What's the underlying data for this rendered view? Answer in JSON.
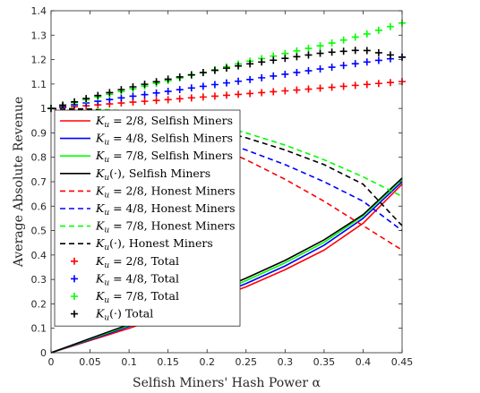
{
  "chart_data": {
    "type": "line",
    "xlabel": "Selfish Miners' Hash Power α",
    "ylabel": "Average Absolute Revenue",
    "xlim": [
      0,
      0.45
    ],
    "ylim": [
      0,
      1.4
    ],
    "xticks": [
      "0",
      "0.05",
      "0.1",
      "0.15",
      "0.2",
      "0.25",
      "0.3",
      "0.35",
      "0.4",
      "0.45"
    ],
    "yticks": [
      "0",
      "0.1",
      "0.2",
      "0.3",
      "0.4",
      "0.5",
      "0.6",
      "0.7",
      "0.8",
      "0.9",
      "1",
      "1.1",
      "1.2",
      "1.3",
      "1.4"
    ],
    "grid": false,
    "legend_position": "left",
    "x": [
      0,
      0.05,
      0.1,
      0.15,
      0.2,
      0.25,
      0.3,
      0.35,
      0.4,
      0.45
    ],
    "series": [
      {
        "name": "K_u = 2/8, Selfish Miners",
        "legend_k": "2/8",
        "legend_suffix": ", Selfish Miners",
        "color": "#ff0000",
        "style": "solid",
        "values": [
          0,
          0.05,
          0.1,
          0.155,
          0.21,
          0.27,
          0.34,
          0.42,
          0.53,
          0.69
        ]
      },
      {
        "name": "K_u = 4/8, Selfish Miners",
        "legend_k": "4/8",
        "legend_suffix": ", Selfish Miners",
        "color": "#0000ff",
        "style": "solid",
        "values": [
          0,
          0.053,
          0.107,
          0.163,
          0.22,
          0.283,
          0.355,
          0.44,
          0.55,
          0.7
        ]
      },
      {
        "name": "K_u = 7/8, Selfish Miners",
        "legend_k": "7/8",
        "legend_suffix": ", Selfish Miners",
        "color": "#00ff00",
        "style": "solid",
        "values": [
          0,
          0.056,
          0.112,
          0.17,
          0.23,
          0.295,
          0.368,
          0.452,
          0.56,
          0.71
        ]
      },
      {
        "name": "K_u(·), Selfish Miners",
        "legend_k": "(·)",
        "legend_suffix": ", Selfish Miners",
        "color": "#000000",
        "style": "solid",
        "values": [
          0,
          0.058,
          0.116,
          0.176,
          0.238,
          0.305,
          0.378,
          0.462,
          0.565,
          0.715
        ]
      },
      {
        "name": "K_u = 2/8, Honest Miners",
        "legend_k": "2/8",
        "legend_suffix": ", Honest Miners",
        "color": "#ff0000",
        "style": "dashed",
        "values": [
          1.0,
          0.99,
          0.97,
          0.925,
          0.86,
          0.79,
          0.71,
          0.62,
          0.52,
          0.42
        ]
      },
      {
        "name": "K_u = 4/8, Honest Miners",
        "legend_k": "4/8",
        "legend_suffix": ", Honest Miners",
        "color": "#0000ff",
        "style": "dashed",
        "values": [
          1.0,
          0.995,
          0.975,
          0.935,
          0.885,
          0.83,
          0.77,
          0.7,
          0.62,
          0.5
        ]
      },
      {
        "name": "K_u = 7/8, Honest Miners",
        "legend_k": "7/8",
        "legend_suffix": ", Honest Miners",
        "color": "#00ff00",
        "style": "dashed",
        "values": [
          1.0,
          0.998,
          0.99,
          0.97,
          0.94,
          0.9,
          0.85,
          0.79,
          0.72,
          0.64
        ]
      },
      {
        "name": "K_u(·), Honest Miners",
        "legend_k": "(·)",
        "legend_suffix": ", Honest Miners",
        "color": "#000000",
        "style": "dashed",
        "values": [
          1.0,
          0.997,
          0.98,
          0.96,
          0.92,
          0.88,
          0.83,
          0.77,
          0.69,
          0.52
        ]
      },
      {
        "name": "K_u = 2/8, Total",
        "legend_k": "2/8",
        "legend_suffix": ", Total",
        "color": "#ff0000",
        "style": "plus",
        "values": [
          1.0,
          1.012,
          1.025,
          1.036,
          1.048,
          1.06,
          1.072,
          1.084,
          1.097,
          1.11
        ]
      },
      {
        "name": "K_u = 4/8, Total",
        "legend_k": "4/8",
        "legend_suffix": ", Total",
        "color": "#0000ff",
        "style": "plus",
        "values": [
          1.0,
          1.025,
          1.048,
          1.07,
          1.093,
          1.116,
          1.14,
          1.164,
          1.188,
          1.21
        ]
      },
      {
        "name": "K_u = 7/8, Total",
        "legend_k": "7/8",
        "legend_suffix": ", Total",
        "color": "#00ff00",
        "style": "plus",
        "values": [
          1.0,
          1.04,
          1.077,
          1.114,
          1.15,
          1.19,
          1.225,
          1.26,
          1.3,
          1.35
        ]
      },
      {
        "name": "K_u(·) Total",
        "legend_k": "(·)",
        "legend_suffix": " Total",
        "color": "#000000",
        "style": "plus",
        "values": [
          1.0,
          1.045,
          1.085,
          1.12,
          1.15,
          1.18,
          1.205,
          1.228,
          1.24,
          1.21
        ]
      }
    ]
  }
}
